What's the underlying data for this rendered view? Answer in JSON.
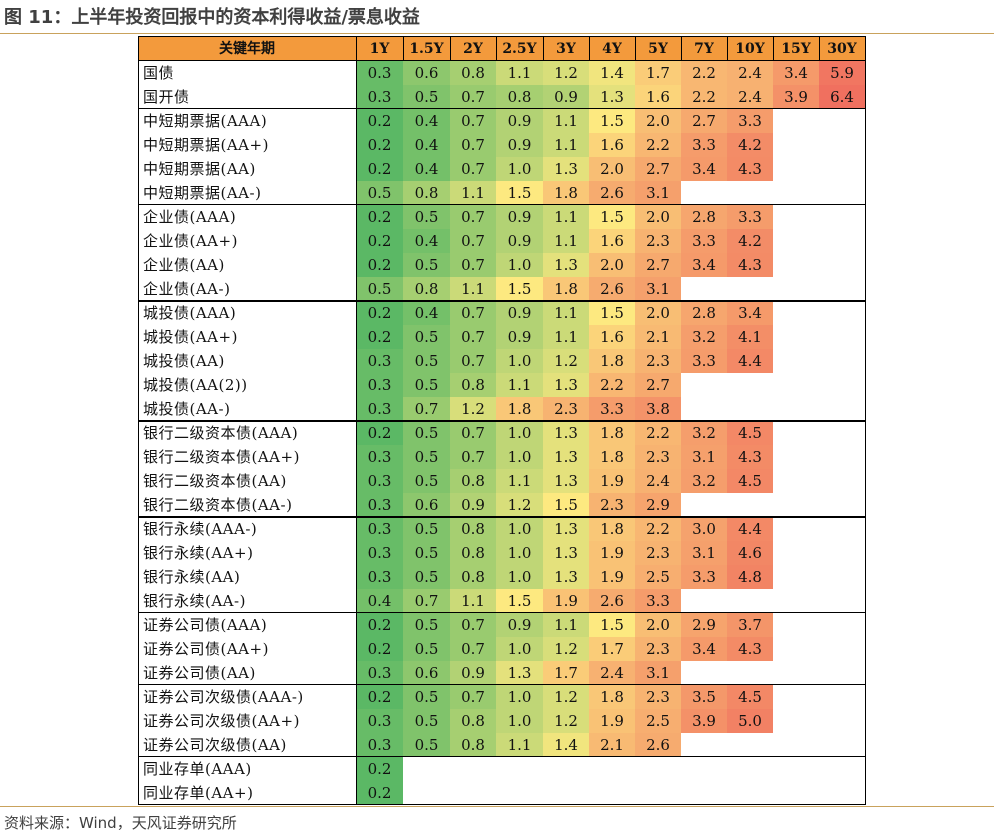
{
  "title": "图 11：上半年投资回报中的资本利得收益/票息收益",
  "source": "资料来源：Wind，天风证券研究所",
  "chart_data": {
    "type": "table",
    "corner_label": "关键年期",
    "columns": [
      "1Y",
      "1.5Y",
      "2Y",
      "2.5Y",
      "3Y",
      "4Y",
      "5Y",
      "7Y",
      "10Y",
      "15Y",
      "30Y"
    ],
    "rows": [
      {
        "name": "国债",
        "values": [
          0.3,
          0.6,
          0.8,
          1.1,
          1.2,
          1.4,
          1.7,
          2.2,
          2.4,
          3.4,
          5.9
        ]
      },
      {
        "name": "国开债",
        "values": [
          0.3,
          0.5,
          0.7,
          0.8,
          0.9,
          1.3,
          1.6,
          2.2,
          2.4,
          3.9,
          6.4
        ]
      },
      {
        "name": "中短期票据(AAA)",
        "values": [
          0.2,
          0.4,
          0.7,
          0.9,
          1.1,
          1.5,
          2.0,
          2.7,
          3.3
        ]
      },
      {
        "name": "中短期票据(AA+)",
        "values": [
          0.2,
          0.4,
          0.7,
          0.9,
          1.1,
          1.6,
          2.2,
          3.3,
          4.2
        ]
      },
      {
        "name": "中短期票据(AA)",
        "values": [
          0.2,
          0.4,
          0.7,
          1.0,
          1.3,
          2.0,
          2.7,
          3.4,
          4.3
        ]
      },
      {
        "name": "中短期票据(AA-)",
        "values": [
          0.5,
          0.8,
          1.1,
          1.5,
          1.8,
          2.6,
          3.1
        ]
      },
      {
        "name": "企业债(AAA)",
        "values": [
          0.2,
          0.5,
          0.7,
          0.9,
          1.1,
          1.5,
          2.0,
          2.8,
          3.3
        ]
      },
      {
        "name": "企业债(AA+)",
        "values": [
          0.2,
          0.4,
          0.7,
          0.9,
          1.1,
          1.6,
          2.3,
          3.3,
          4.2
        ]
      },
      {
        "name": "企业债(AA)",
        "values": [
          0.2,
          0.5,
          0.7,
          1.0,
          1.3,
          2.0,
          2.7,
          3.4,
          4.3
        ]
      },
      {
        "name": "企业债(AA-)",
        "values": [
          0.5,
          0.8,
          1.1,
          1.5,
          1.8,
          2.6,
          3.1
        ]
      },
      {
        "name": "城投债(AAA)",
        "values": [
          0.2,
          0.4,
          0.7,
          0.9,
          1.1,
          1.5,
          2.0,
          2.8,
          3.4
        ]
      },
      {
        "name": "城投债(AA+)",
        "values": [
          0.2,
          0.5,
          0.7,
          0.9,
          1.1,
          1.6,
          2.1,
          3.2,
          4.1
        ]
      },
      {
        "name": "城投债(AA)",
        "values": [
          0.3,
          0.5,
          0.7,
          1.0,
          1.2,
          1.8,
          2.3,
          3.3,
          4.4
        ]
      },
      {
        "name": "城投债(AA(2))",
        "values": [
          0.3,
          0.5,
          0.8,
          1.1,
          1.3,
          2.2,
          2.7
        ]
      },
      {
        "name": "城投债(AA-)",
        "values": [
          0.3,
          0.7,
          1.2,
          1.8,
          2.3,
          3.3,
          3.8
        ]
      },
      {
        "name": "银行二级资本债(AAA)",
        "values": [
          0.2,
          0.5,
          0.7,
          1.0,
          1.3,
          1.8,
          2.2,
          3.2,
          4.5
        ]
      },
      {
        "name": "银行二级资本债(AA+)",
        "values": [
          0.3,
          0.5,
          0.7,
          1.0,
          1.3,
          1.8,
          2.3,
          3.1,
          4.3
        ]
      },
      {
        "name": "银行二级资本债(AA)",
        "values": [
          0.3,
          0.5,
          0.8,
          1.1,
          1.3,
          1.9,
          2.4,
          3.2,
          4.5
        ]
      },
      {
        "name": "银行二级资本债(AA-)",
        "values": [
          0.3,
          0.6,
          0.9,
          1.2,
          1.5,
          2.3,
          2.9
        ]
      },
      {
        "name": "银行永续(AAA-)",
        "values": [
          0.3,
          0.5,
          0.8,
          1.0,
          1.3,
          1.8,
          2.2,
          3.0,
          4.4
        ]
      },
      {
        "name": "银行永续(AA+)",
        "values": [
          0.3,
          0.5,
          0.8,
          1.0,
          1.3,
          1.9,
          2.3,
          3.1,
          4.6
        ]
      },
      {
        "name": "银行永续(AA)",
        "values": [
          0.3,
          0.5,
          0.8,
          1.0,
          1.3,
          1.9,
          2.5,
          3.3,
          4.8
        ]
      },
      {
        "name": "银行永续(AA-)",
        "values": [
          0.4,
          0.7,
          1.1,
          1.5,
          1.9,
          2.6,
          3.3
        ]
      },
      {
        "name": "证券公司债(AAA)",
        "values": [
          0.2,
          0.5,
          0.7,
          0.9,
          1.1,
          1.5,
          2.0,
          2.9,
          3.7
        ]
      },
      {
        "name": "证券公司债(AA+)",
        "values": [
          0.2,
          0.5,
          0.7,
          1.0,
          1.2,
          1.7,
          2.3,
          3.4,
          4.3
        ]
      },
      {
        "name": "证券公司债(AA)",
        "values": [
          0.3,
          0.6,
          0.9,
          1.3,
          1.7,
          2.4,
          3.1
        ]
      },
      {
        "name": "证券公司次级债(AAA-)",
        "values": [
          0.2,
          0.5,
          0.7,
          1.0,
          1.2,
          1.8,
          2.3,
          3.5,
          4.5
        ]
      },
      {
        "name": "证券公司次级债(AA+)",
        "values": [
          0.3,
          0.5,
          0.8,
          1.0,
          1.2,
          1.9,
          2.5,
          3.9,
          5.0
        ]
      },
      {
        "name": "证券公司次级债(AA)",
        "values": [
          0.3,
          0.5,
          0.8,
          1.1,
          1.4,
          2.1,
          2.6
        ]
      },
      {
        "name": "同业存单(AAA)",
        "values": [
          0.2
        ]
      },
      {
        "name": "同业存单(AA+)",
        "values": [
          0.2
        ]
      }
    ],
    "groups": [
      2,
      4,
      4,
      5,
      4,
      4,
      3,
      3,
      2
    ],
    "colors": {
      "header": "#f39a3c",
      "low": "#5bb865",
      "mid": "#fde980",
      "high": "#f0705f"
    }
  }
}
